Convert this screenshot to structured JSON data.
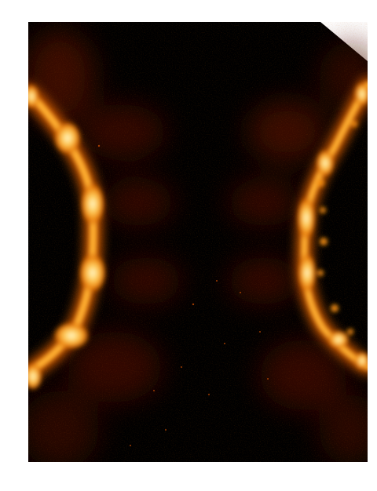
{
  "image": {
    "subject": "fluorescence-microscopy-heatmap",
    "colormap": [
      "#000000",
      "#3a0500",
      "#7a1a00",
      "#c24a00",
      "#f08a10",
      "#ffd060",
      "#fff8d0"
    ],
    "background": "#ffffff"
  }
}
